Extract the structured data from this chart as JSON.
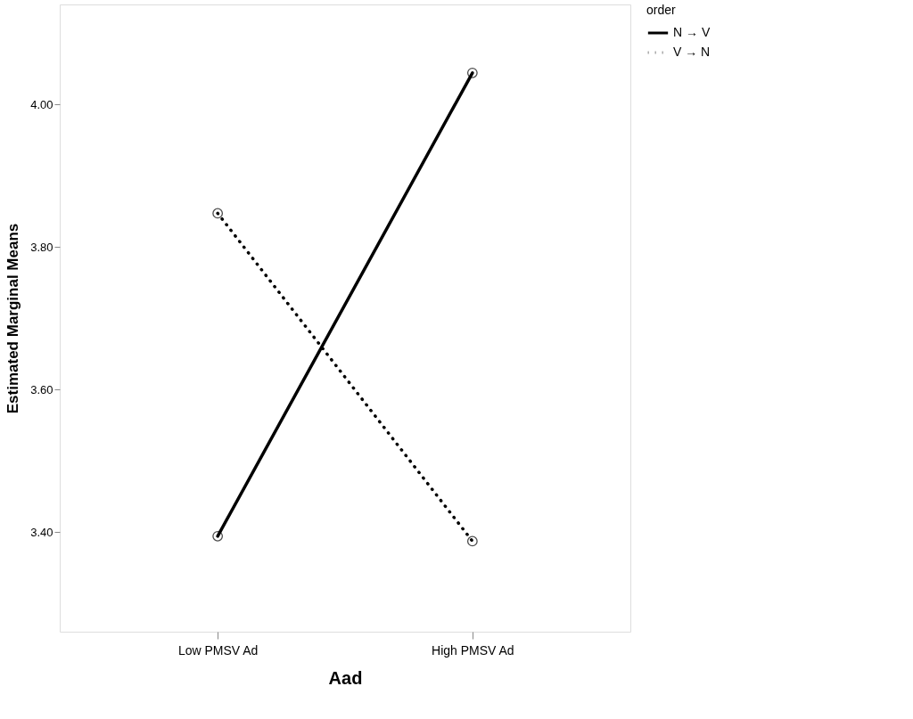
{
  "chart_data": {
    "type": "line",
    "xlabel": "Aad",
    "ylabel": "Estimated Marginal Means",
    "legend_title": "order",
    "categories": [
      "Low PMSV Ad",
      "High PMSV Ad"
    ],
    "series": [
      {
        "name": "N → V",
        "color": "#000000",
        "line_style": "solid",
        "values": [
          3.394,
          4.044
        ]
      },
      {
        "name": "V → N",
        "color": "#000000",
        "line_style": "dotted",
        "values": [
          3.847,
          3.387
        ]
      }
    ],
    "ylim": [
      3.26,
      4.14
    ],
    "yticks": [
      {
        "value": 3.4,
        "label": "3.40"
      },
      {
        "value": 3.6,
        "label": "3.60"
      },
      {
        "value": 3.8,
        "label": "3.80"
      },
      {
        "value": 4.0,
        "label": "4.00"
      }
    ],
    "grid": false,
    "legend": "top right",
    "marker": "circle"
  }
}
